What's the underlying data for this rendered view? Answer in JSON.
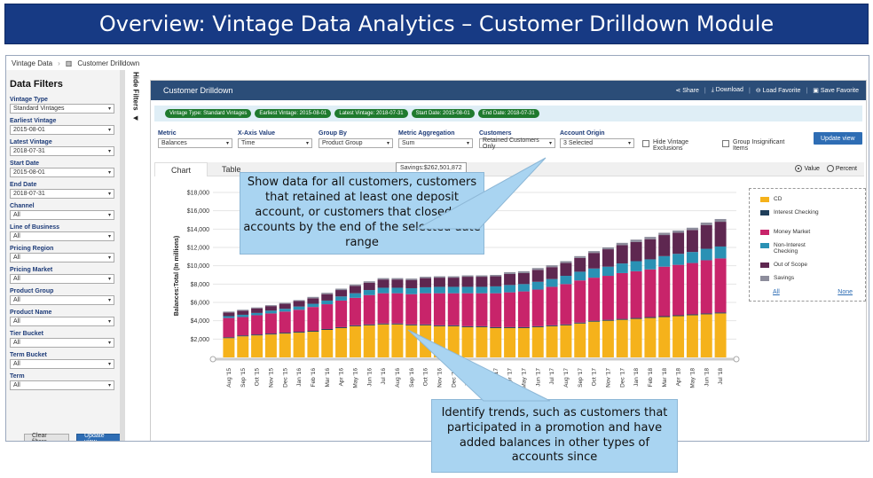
{
  "banner": {
    "title": "Overview: Vintage Data Analytics – Customer Drilldown Module"
  },
  "breadcrumb": {
    "items": [
      "Vintage Data",
      "Customer Drilldown"
    ]
  },
  "sidebar": {
    "title": "Data Filters",
    "filters": [
      {
        "label": "Vintage Type",
        "value": "Standard Vintages"
      },
      {
        "label": "Earliest Vintage",
        "value": "2015-08-01"
      },
      {
        "label": "Latest Vintage",
        "value": "2018-07-31"
      },
      {
        "label": "Start Date",
        "value": "2015-08-01"
      },
      {
        "label": "End Date",
        "value": "2018-07-31"
      },
      {
        "label": "Channel",
        "value": "All"
      },
      {
        "label": "Line of Business",
        "value": "All"
      },
      {
        "label": "Pricing Region",
        "value": "All"
      },
      {
        "label": "Pricing Market",
        "value": "All"
      },
      {
        "label": "Product Group",
        "value": "All"
      },
      {
        "label": "Product Name",
        "value": "All"
      },
      {
        "label": "Tier Bucket",
        "value": "All"
      },
      {
        "label": "Term Bucket",
        "value": "All"
      },
      {
        "label": "Term",
        "value": "All"
      }
    ],
    "clear_label": "Clear filters",
    "update_label": "Update view",
    "hide_label": "Hide Filters"
  },
  "main": {
    "title": "Customer Drilldown",
    "actions": [
      "Share",
      "Download",
      "Load Favorite",
      "Save Favorite"
    ],
    "tags": [
      "Vintage Type: Standard Vintages",
      "Earliest Vintage: 2015-08-01",
      "Latest Vintage: 2018-07-31",
      "Start Date: 2015-08-01",
      "End Date: 2018-07-31"
    ],
    "controls": {
      "metric": {
        "label": "Metric",
        "value": "Balances"
      },
      "xaxis": {
        "label": "X-Axis Value",
        "value": "Time"
      },
      "groupby": {
        "label": "Group By",
        "value": "Product Group"
      },
      "aggregation": {
        "label": "Metric Aggregation",
        "value": "Sum"
      },
      "customers": {
        "label": "Customers",
        "value": "Retained Customers Only"
      },
      "origin": {
        "label": "Account Origin",
        "value": "3 Selected"
      },
      "hide_vintage": "Hide Vintage Exclusions",
      "group_insig": "Group Insignificant Items",
      "update_label": "Update view"
    },
    "tabs": [
      "Chart",
      "Table"
    ],
    "radios": {
      "value": "Value",
      "percent": "Percent"
    }
  },
  "tooltip": "Savings:$262,501,872",
  "callouts": {
    "top": "Show data for all customers, customers that retained at least one deposit account, or customers that closed all accounts by the end of the selected date range",
    "bottom": "Identify trends, such as customers that participated in a promotion and have added balances in other types of accounts since"
  },
  "legend": {
    "items": [
      {
        "name": "CD",
        "color": "#f5b21b"
      },
      {
        "name": "Interest Checking",
        "color": "#1f3e5a"
      },
      {
        "name": "Money Market",
        "color": "#c8246a"
      },
      {
        "name": "Non-Interest Checking",
        "color": "#2a91b4"
      },
      {
        "name": "Out of Scope",
        "color": "#5e2750"
      },
      {
        "name": "Savings",
        "color": "#8d8d9c"
      }
    ],
    "all_label": "All",
    "none_label": "None"
  },
  "chart_data": {
    "type": "bar",
    "stacked": true,
    "ylabel": "Balances:Total (In millions)",
    "ylim": [
      0,
      18000
    ],
    "yticks": [
      "$2,000",
      "$4,000",
      "$6,000",
      "$8,000",
      "$10,000",
      "$12,000",
      "$14,000",
      "$16,000",
      "$18,000"
    ],
    "categories": [
      "Aug '15",
      "Sep '15",
      "Oct '15",
      "Nov '15",
      "Dec '15",
      "Jan '16",
      "Feb '16",
      "Mar '16",
      "Apr '16",
      "May '16",
      "Jun '16",
      "Jul '16",
      "Aug '16",
      "Sep '16",
      "Oct '16",
      "Nov '16",
      "Dec '16",
      "Jan '17",
      "Feb '17",
      "Mar '17",
      "Apr '17",
      "May '17",
      "Jun '17",
      "Jul '17",
      "Aug '17",
      "Sep '17",
      "Oct '17",
      "Nov '17",
      "Dec '17",
      "Jan '18",
      "Feb '18",
      "Mar '18",
      "Apr '18",
      "May '18",
      "Jun '18",
      "Jul '18"
    ],
    "tick_labels": [
      "Aug '15",
      "Sep '15",
      "Oct '15",
      "Nov '15",
      "Dec '15",
      "Jan '16",
      "Feb '16",
      "Mar '16",
      "Apr '16",
      "May '16",
      "Jun '16",
      "Jul '16",
      "Aug '16",
      "Sep '16",
      "Oct '16",
      "Nov '16",
      "Dec '16",
      "Jan '17",
      "Feb '17",
      "Mar '17",
      "Apr '17",
      "May '17",
      "Jun '17",
      "Jul '17",
      "Aug '17",
      "Sep '17",
      "Oct '17",
      "Nov '17",
      "Dec '17",
      "Jan '18",
      "Feb '18",
      "Mar '18",
      "Apr '18",
      "May '18",
      "Jun '18",
      "Jul '18"
    ],
    "series": [
      {
        "name": "CD",
        "values": [
          2100,
          2300,
          2400,
          2500,
          2600,
          2700,
          2800,
          3000,
          3200,
          3400,
          3500,
          3600,
          3600,
          3500,
          3500,
          3400,
          3400,
          3300,
          3300,
          3200,
          3200,
          3200,
          3300,
          3400,
          3500,
          3700,
          3900,
          4000,
          4100,
          4200,
          4300,
          4400,
          4500,
          4600,
          4700,
          4800
        ]
      },
      {
        "name": "Interest Checking",
        "values": [
          100,
          100,
          100,
          100,
          100,
          100,
          100,
          100,
          100,
          100,
          100,
          100,
          100,
          100,
          100,
          100,
          100,
          100,
          100,
          100,
          100,
          100,
          100,
          100,
          100,
          100,
          100,
          100,
          100,
          100,
          100,
          100,
          100,
          100,
          100,
          100
        ]
      },
      {
        "name": "Money Market",
        "values": [
          2100,
          2000,
          2100,
          2200,
          2300,
          2400,
          2600,
          2700,
          2900,
          3000,
          3200,
          3300,
          3300,
          3300,
          3400,
          3500,
          3500,
          3600,
          3600,
          3700,
          3800,
          3900,
          4000,
          4200,
          4400,
          4600,
          4700,
          4800,
          5000,
          5100,
          5200,
          5400,
          5500,
          5600,
          5800,
          5900
        ]
      },
      {
        "name": "Non-Interest Checking",
        "values": [
          200,
          250,
          250,
          300,
          300,
          350,
          350,
          400,
          450,
          500,
          550,
          600,
          600,
          650,
          650,
          700,
          700,
          700,
          700,
          750,
          800,
          800,
          850,
          850,
          900,
          950,
          1000,
          1000,
          1050,
          1100,
          1100,
          1150,
          1200,
          1200,
          1250,
          1300
        ]
      },
      {
        "name": "Out of Scope",
        "values": [
          400,
          450,
          500,
          500,
          550,
          600,
          600,
          700,
          700,
          800,
          800,
          900,
          900,
          900,
          1000,
          1000,
          1000,
          1100,
          1100,
          1100,
          1200,
          1200,
          1300,
          1300,
          1400,
          1500,
          1700,
          1900,
          2000,
          2100,
          2200,
          2300,
          2300,
          2400,
          2600,
          2700
        ]
      },
      {
        "name": "Savings",
        "values": [
          100,
          100,
          100,
          100,
          100,
          100,
          150,
          150,
          150,
          150,
          150,
          150,
          150,
          150,
          150,
          150,
          150,
          150,
          150,
          150,
          200,
          200,
          200,
          200,
          200,
          200,
          200,
          200,
          250,
          250,
          250,
          250,
          250,
          250,
          262.5,
          300
        ]
      }
    ]
  }
}
